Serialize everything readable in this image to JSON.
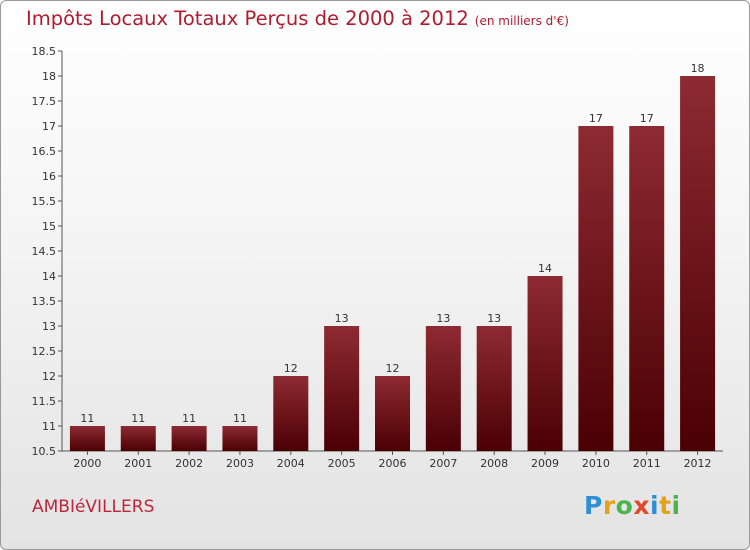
{
  "title": {
    "main": "Impôts Locaux Totaux Perçus de 2000 à 2012",
    "unit": "(en milliers d'€)"
  },
  "commune": "AMBIéVILLERS",
  "logo": {
    "text": "Proxiti",
    "letters": [
      "P",
      "r",
      "o",
      "x",
      "i",
      "t",
      "i"
    ]
  },
  "colors": {
    "title": "#b01b2e",
    "bar_top": "#8e2a32",
    "bar_bottom": "#4a0003"
  },
  "chart_data": {
    "type": "bar",
    "categories": [
      "2000",
      "2001",
      "2002",
      "2003",
      "2004",
      "2005",
      "2006",
      "2007",
      "2008",
      "2009",
      "2010",
      "2011",
      "2012"
    ],
    "values": [
      11,
      11,
      11,
      11,
      12,
      13,
      12,
      13,
      13,
      14,
      17,
      17,
      18
    ],
    "data_labels": [
      "11",
      "11",
      "11",
      "11",
      "12",
      "13",
      "12",
      "13",
      "13",
      "14",
      "17",
      "17",
      "18"
    ],
    "ylim": [
      10.5,
      18.5
    ],
    "yticks": [
      "10.5",
      "11",
      "11.5",
      "12",
      "12.5",
      "13",
      "13.5",
      "14",
      "14.5",
      "15",
      "15.5",
      "16",
      "16.5",
      "17",
      "17.5",
      "18",
      "18.5"
    ],
    "grid": false,
    "legend": "none"
  }
}
